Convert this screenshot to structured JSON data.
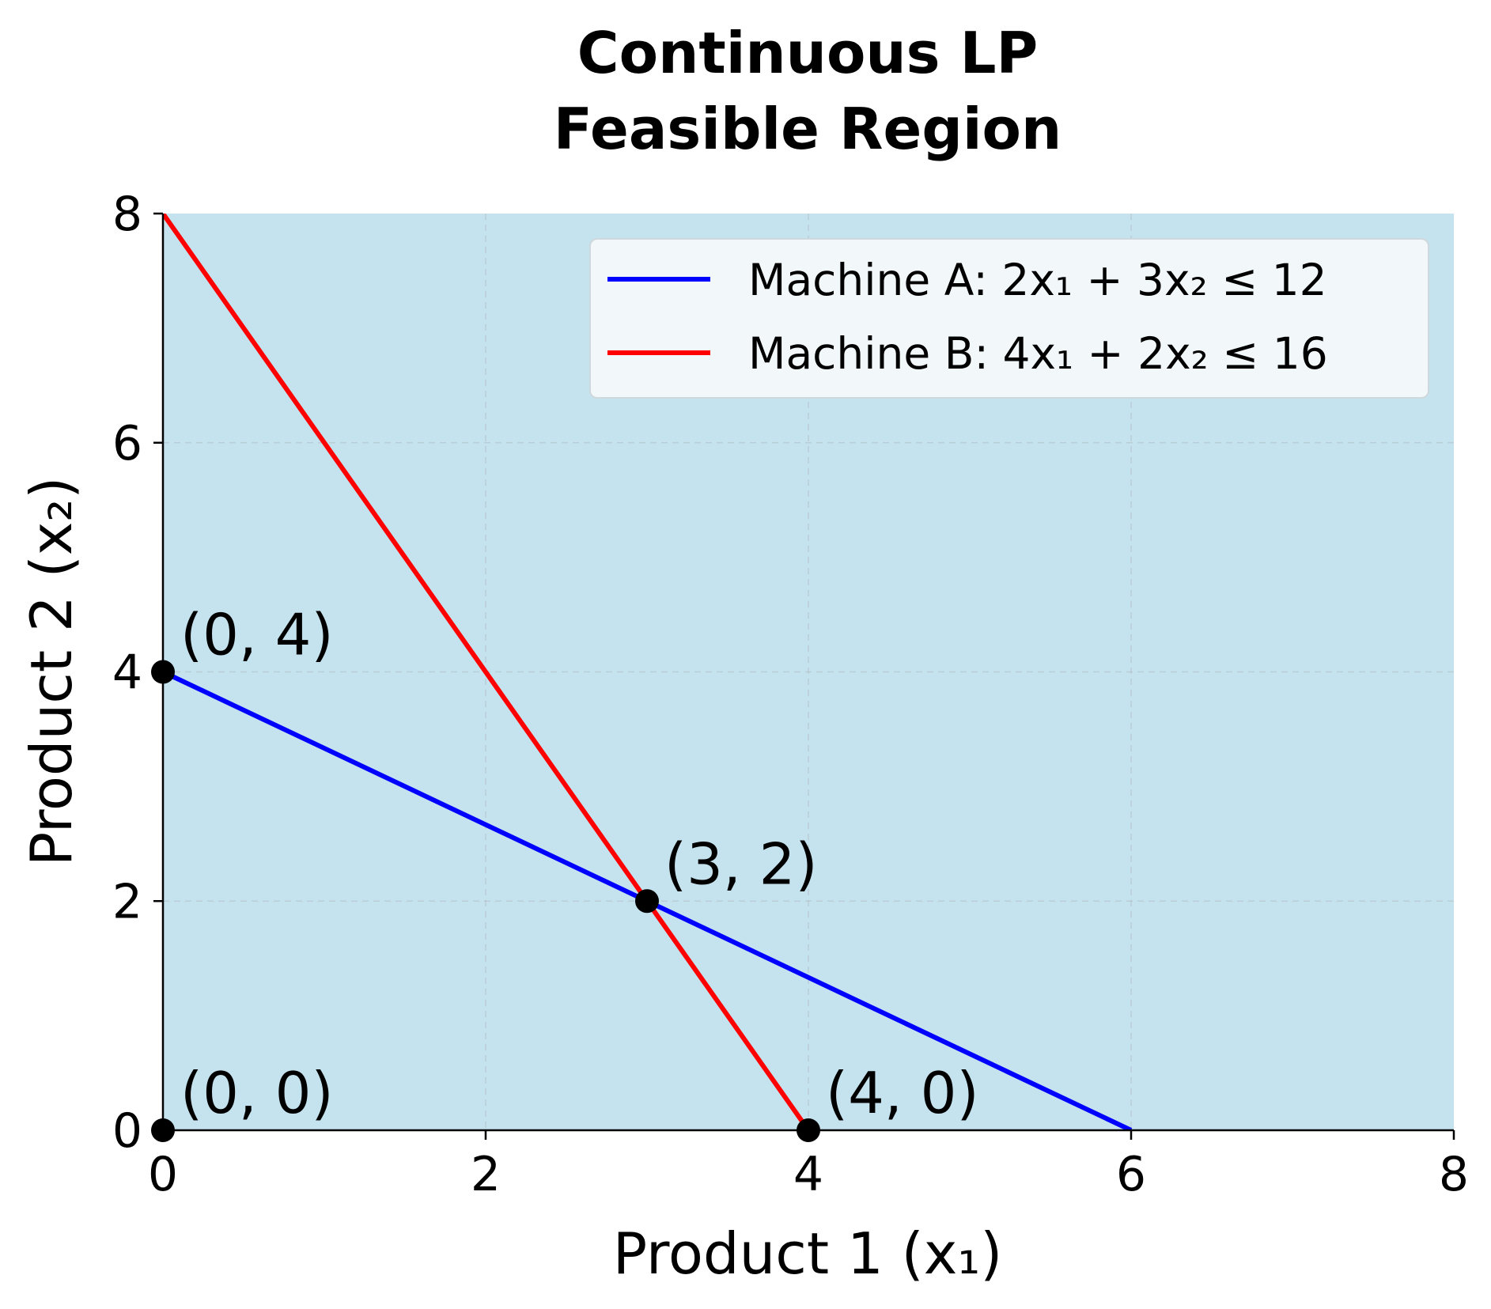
{
  "chart_data": {
    "type": "line",
    "title_lines": [
      "Continuous LP",
      "Feasible Region"
    ],
    "xlabel": "Product 1 (x₁)",
    "ylabel": "Product 2 (x₂)",
    "xlim": [
      0,
      8
    ],
    "ylim": [
      0,
      8
    ],
    "xticks": [
      0,
      2,
      4,
      6,
      8
    ],
    "yticks": [
      0,
      2,
      4,
      6,
      8
    ],
    "grid": true,
    "background_color": "#c5e3ee",
    "legend_position": "top-right",
    "series": [
      {
        "name": "Machine A: 2x₁ + 3x₂ ≤ 12",
        "color": "#0000ff",
        "x": [
          0,
          6
        ],
        "y": [
          4,
          0
        ]
      },
      {
        "name": "Machine B: 4x₁ + 2x₂ ≤ 16",
        "color": "#ff0000",
        "x": [
          0,
          4
        ],
        "y": [
          8,
          0
        ]
      }
    ],
    "points": [
      {
        "x": 0,
        "y": 0,
        "label": "(0, 0)"
      },
      {
        "x": 0,
        "y": 4,
        "label": "(0, 4)"
      },
      {
        "x": 3,
        "y": 2,
        "label": "(3, 2)"
      },
      {
        "x": 4,
        "y": 0,
        "label": "(4, 0)"
      }
    ],
    "point_color": "#000000"
  }
}
